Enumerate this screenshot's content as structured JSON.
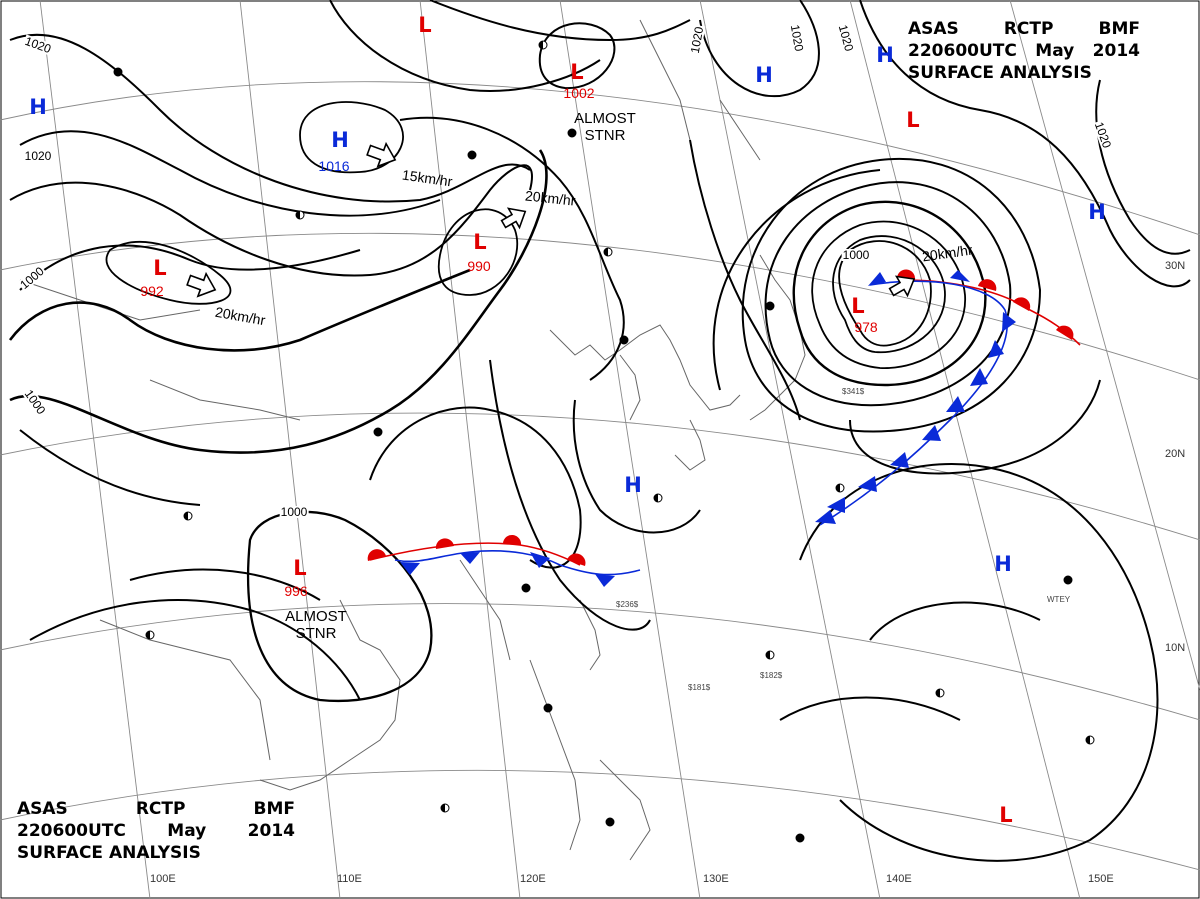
{
  "header": {
    "line1": [
      "ASAS",
      "RCTP",
      "BMF"
    ],
    "line2": [
      "220600UTC",
      "May",
      "2014"
    ],
    "line3": "SURFACE ANALYSIS"
  },
  "pressure_systems": [
    {
      "type": "L",
      "value": "1002"
    },
    {
      "type": "H",
      "value": "1016"
    },
    {
      "type": "L",
      "value": "990"
    },
    {
      "type": "L",
      "value": "992"
    },
    {
      "type": "L",
      "value": "978"
    },
    {
      "type": "L",
      "value": "996"
    },
    {
      "type": "L",
      "value": ""
    },
    {
      "type": "H",
      "value": ""
    },
    {
      "type": "H",
      "value": ""
    },
    {
      "type": "H",
      "value": ""
    },
    {
      "type": "L",
      "value": ""
    },
    {
      "type": "H",
      "value": ""
    },
    {
      "type": "H",
      "value": ""
    },
    {
      "type": "H",
      "value": ""
    },
    {
      "type": "L",
      "value": ""
    }
  ],
  "motion_labels": [
    "15km/hr",
    "20km/hr",
    "20km/hr",
    "20km/hr"
  ],
  "notes": [
    {
      "l1": "ALMOST",
      "l2": "STNR"
    },
    {
      "l1": "ALMOST",
      "l2": "STNR"
    }
  ],
  "isobar_labels": [
    "1020",
    "1020",
    "1020",
    "1020",
    "1020",
    "1020",
    "1000",
    "1000",
    "1000",
    "1000"
  ],
  "longitude_labels": [
    "100E",
    "110E",
    "120E",
    "130E",
    "140E",
    "150E"
  ],
  "latitude_labels": [
    "30N",
    "20N",
    "10N"
  ],
  "sample_reports": [
    "$341$",
    "$236$",
    "$182$",
    "$181$",
    "WTEY"
  ],
  "colors": {
    "low": "#e00000",
    "high": "#0a2ad8",
    "warm_front": "#e00000",
    "cold_front": "#0a2ad8",
    "isobar": "#000000",
    "grid": "#8a8a8a",
    "coast": "#666666"
  }
}
